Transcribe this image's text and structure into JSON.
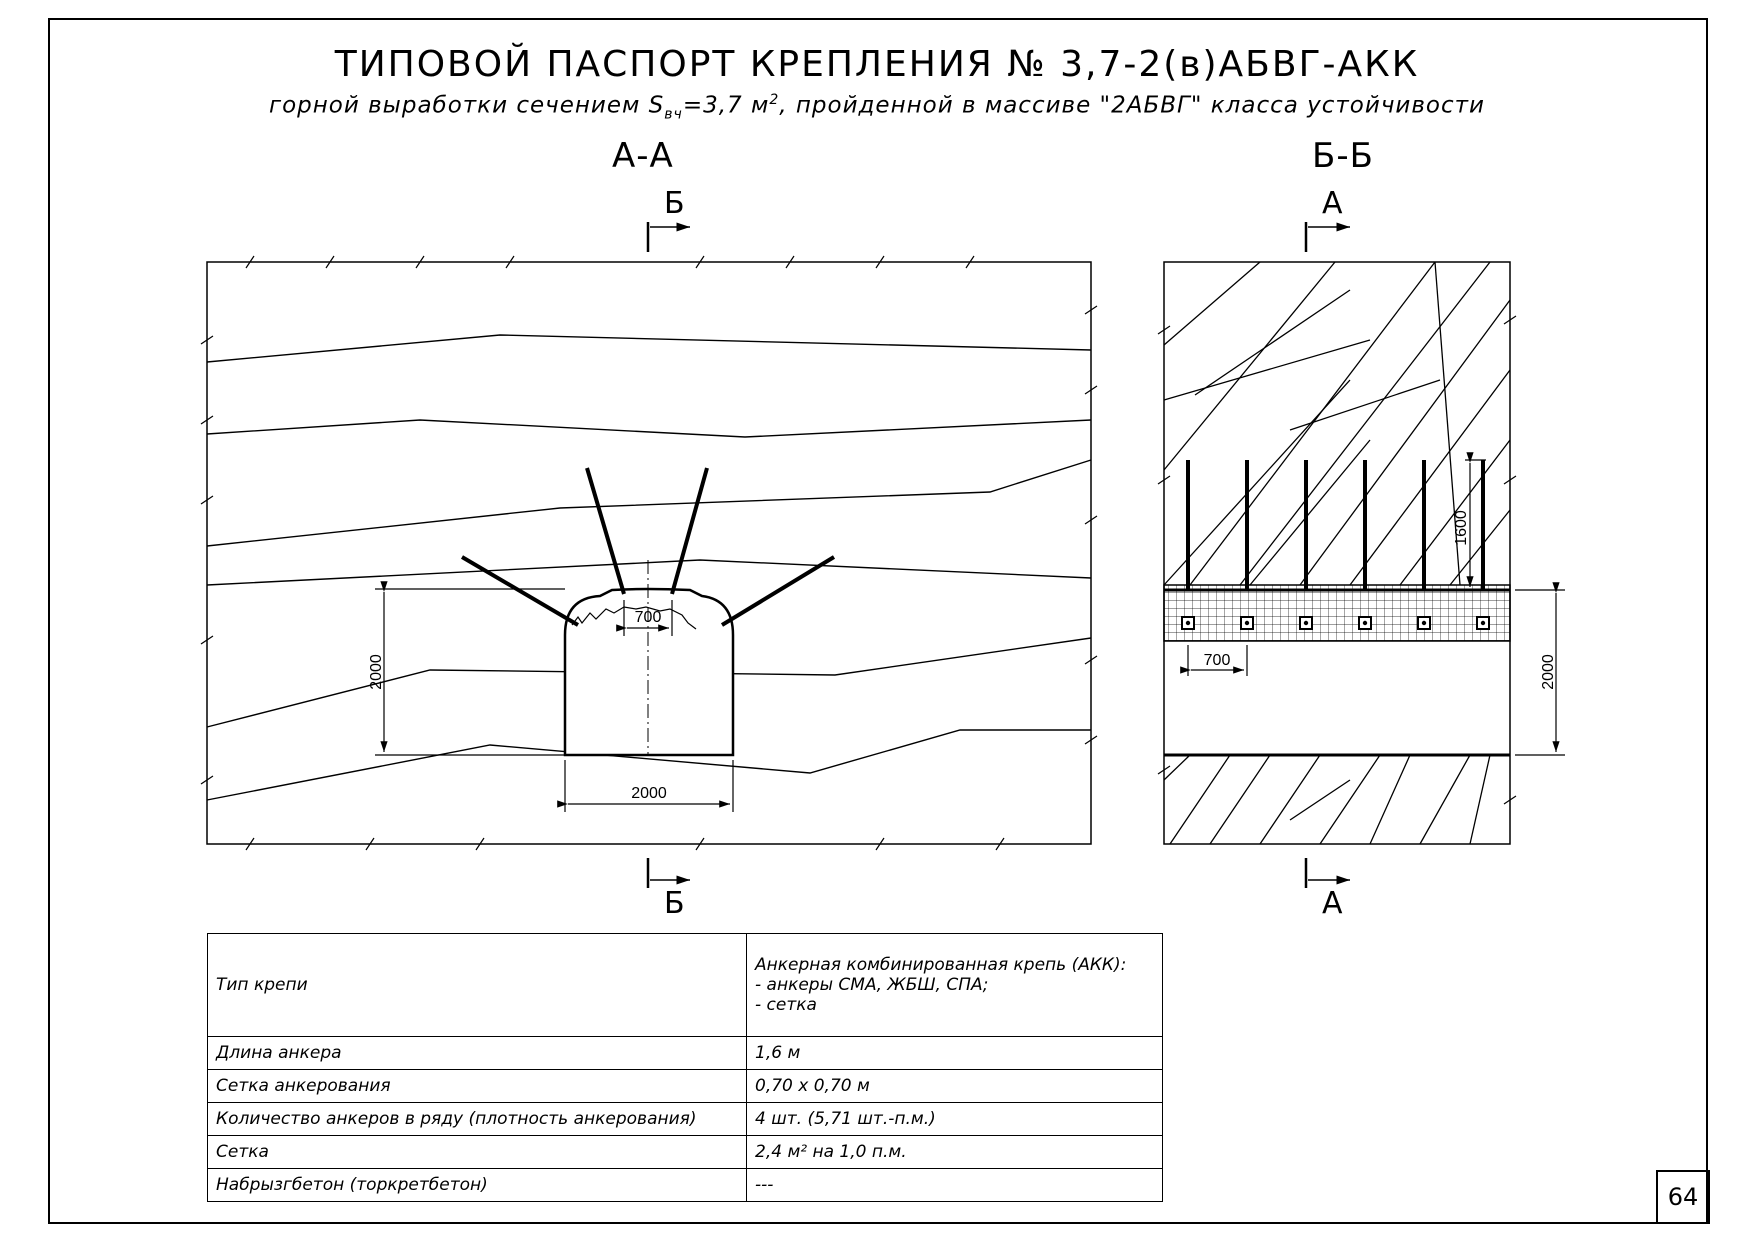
{
  "title": "ТИПОВОЙ ПАСПОРТ КРЕПЛЕНИЯ № 3,7-2(в)АБВГ-АКК",
  "subtitle": {
    "before": "горной выработки сечением S",
    "sub": "вч",
    "mid": "=3,7 м",
    "sup": "2",
    "after": ", пройденной в массиве \"2АБВГ\" класса устойчивости"
  },
  "section_aa": {
    "label": "А-А",
    "cut_top": "Б",
    "cut_bottom": "Б",
    "dim_height": "2000",
    "dim_width": "2000",
    "dim_spacing": "700"
  },
  "section_bb": {
    "label": "Б-Б",
    "cut_top": "А",
    "cut_bottom": "А",
    "dim_height": "2000",
    "dim_spacing": "700",
    "dim_anchor": "1600"
  },
  "spec_table": {
    "rows": [
      {
        "param": "Тип крепи",
        "value_lines": [
          "Анкерная комбинированная крепь (АКК):",
          "- анкеры СМА, ЖБШ, СПА;",
          "- сетка"
        ]
      },
      {
        "param": "Длина анкера",
        "value_lines": [
          "1,6 м"
        ]
      },
      {
        "param": "Сетка анкерования",
        "value_lines": [
          "0,70 х 0,70 м"
        ]
      },
      {
        "param": "Количество анкеров в ряду (плотность анкерования)",
        "value_lines": [
          "4 шт. (5,71 шт.-п.м.)"
        ]
      },
      {
        "param": "Сетка",
        "value_lines": [
          "2,4 м² на 1,0 п.м."
        ]
      },
      {
        "param": "Набрызгбетон (торкретбетон)",
        "value_lines": [
          "---"
        ]
      }
    ]
  },
  "page_number": "64"
}
